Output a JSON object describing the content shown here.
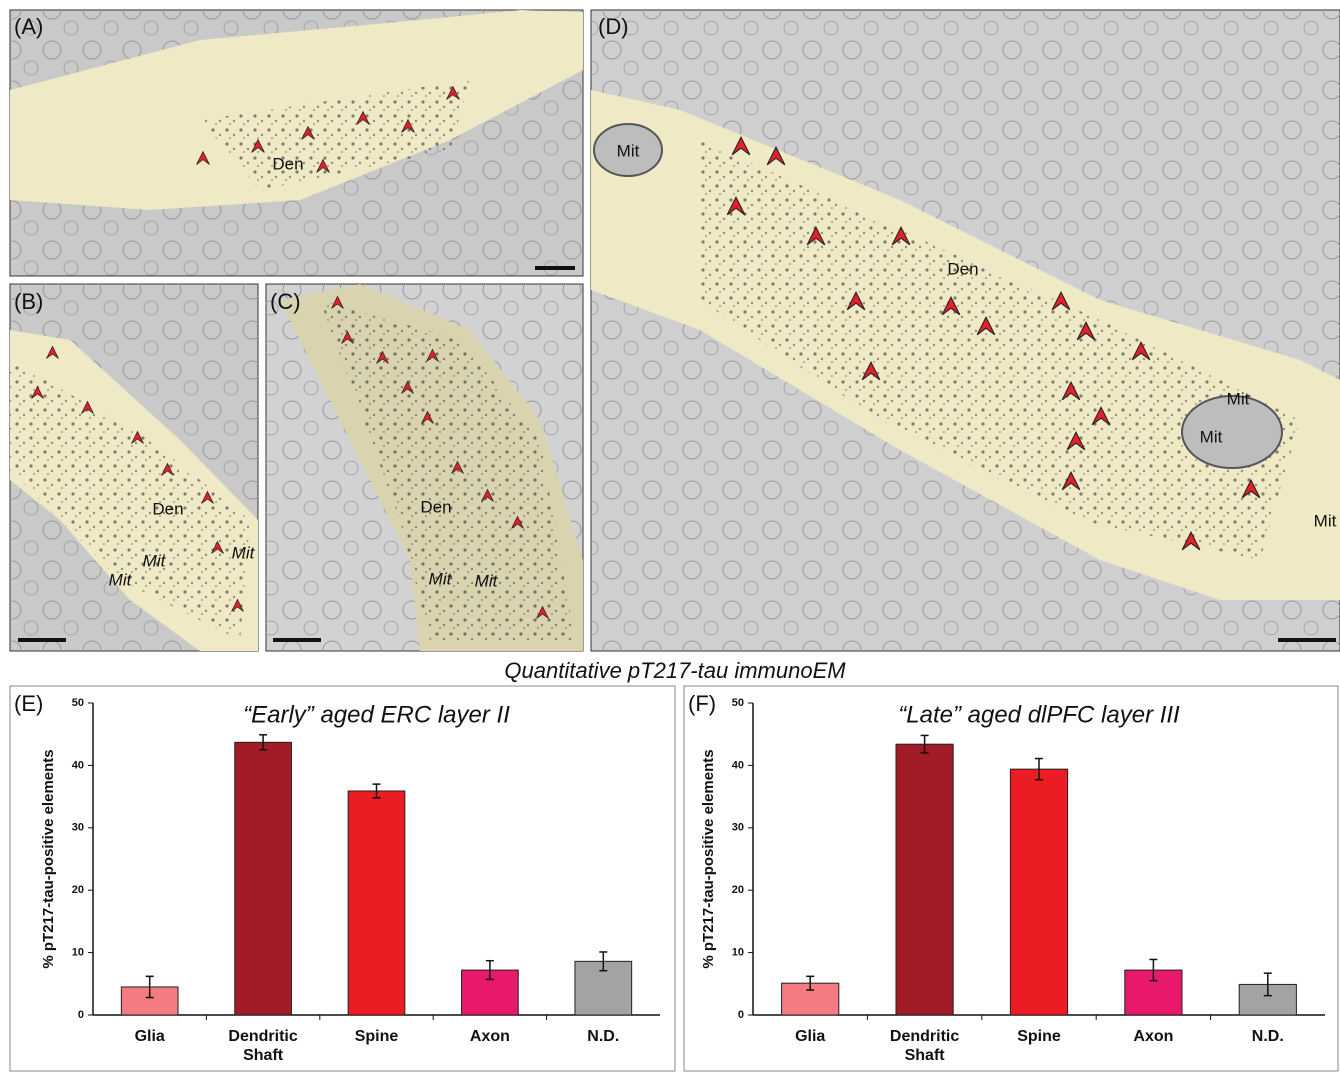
{
  "panels": [
    {
      "label": "(A)",
      "annotations": [
        "Den"
      ]
    },
    {
      "label": "(B)",
      "annotations": [
        "Den",
        "Mit",
        "Mit",
        "Mit"
      ]
    },
    {
      "label": "(C)",
      "annotations": [
        "Den",
        "Mit",
        "Mit"
      ]
    },
    {
      "label": "(D)",
      "annotations": [
        "Mit",
        "Den",
        "Mit",
        "Mit",
        "Mit"
      ]
    }
  ],
  "section_title": "Quantitative pT217-tau immunoEM",
  "chart_data": [
    {
      "type": "bar",
      "panel_label": "(E)",
      "title": "“Early” aged ERC layer II",
      "ylabel": "% pT217-tau-positive elements",
      "categories": [
        "Glia",
        "Dendritic Shaft",
        "Spine",
        "Axon",
        "N.D."
      ],
      "values": [
        4.5,
        43.7,
        35.9,
        7.2,
        8.6
      ],
      "errors": [
        1.7,
        1.2,
        1.1,
        1.5,
        1.5
      ],
      "colors": [
        "#f47c80",
        "#a11c27",
        "#ec1c24",
        "#e8186d",
        "#a3a3a3"
      ],
      "ylim": [
        0,
        50
      ],
      "yticks": [
        0,
        10,
        20,
        30,
        40,
        50
      ]
    },
    {
      "type": "bar",
      "panel_label": "(F)",
      "title": "“Late” aged dlPFC layer III",
      "ylabel": "% pT217-tau-positive elements",
      "categories": [
        "Glia",
        "Dendritic Shaft",
        "Spine",
        "Axon",
        "N.D."
      ],
      "values": [
        5.1,
        43.4,
        39.4,
        7.2,
        4.9
      ],
      "errors": [
        1.1,
        1.4,
        1.7,
        1.7,
        1.8
      ],
      "colors": [
        "#f47c80",
        "#a11c27",
        "#ec1c24",
        "#e8186d",
        "#a3a3a3"
      ],
      "ylim": [
        0,
        50
      ],
      "yticks": [
        0,
        10,
        20,
        30,
        40,
        50
      ]
    }
  ]
}
